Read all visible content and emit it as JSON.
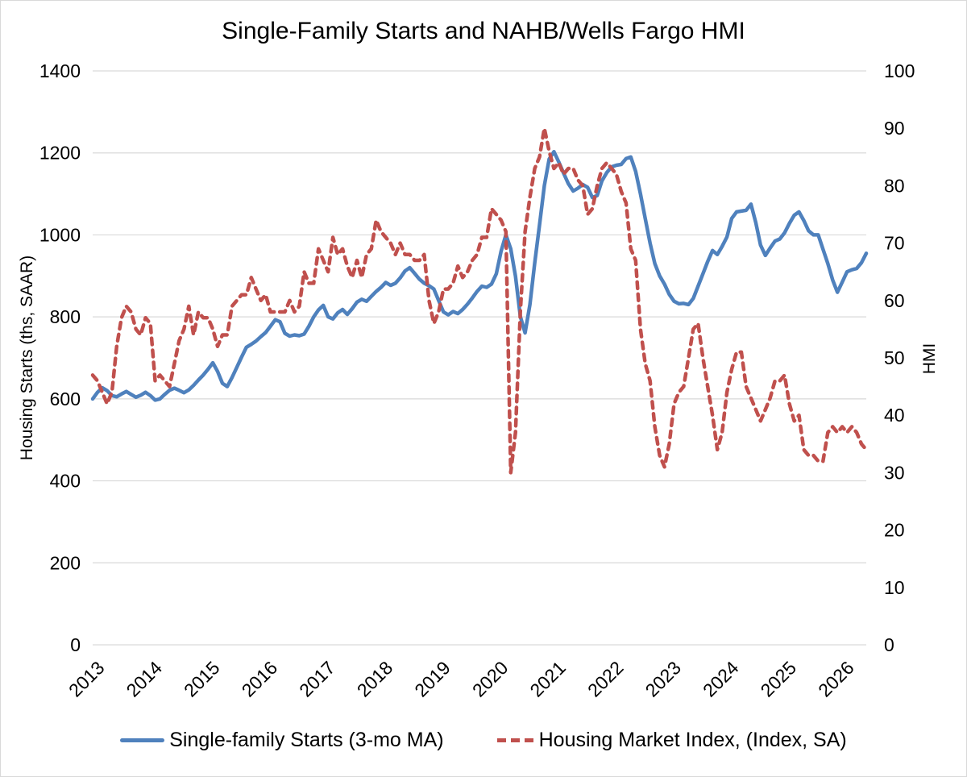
{
  "title": "Single-Family Starts and NAHB/Wells Fargo HMI",
  "colors": {
    "starts_blue": "#4F81BD",
    "hmi_red": "#C0504D",
    "gridline": "#D9D9D9",
    "text": "#000000"
  },
  "chart_data": {
    "type": "line",
    "title": "Single-Family Starts and NAHB/Wells Fargo HMI",
    "grid": "horizontal-only",
    "legend_position": "bottom",
    "x_start": "2013-01",
    "x_end": "2026-06",
    "x_frequency": "monthly",
    "x_tick_labels": [
      "2013",
      "2014",
      "2015",
      "2016",
      "2017",
      "2018",
      "2019",
      "2020",
      "2021",
      "2022",
      "2023",
      "2024",
      "2025",
      "2026"
    ],
    "left_axis": {
      "label": "Housing Starts (ths, SAAR)",
      "min": 0,
      "max": 1400,
      "step": 200,
      "ticks": [
        "0",
        "200",
        "400",
        "600",
        "800",
        "1000",
        "1200",
        "1400"
      ]
    },
    "right_axis": {
      "label": "HMI",
      "min": 0,
      "max": 100,
      "step": 10,
      "ticks": [
        "0",
        "10",
        "20",
        "30",
        "40",
        "50",
        "60",
        "70",
        "80",
        "90",
        "100"
      ]
    },
    "series": [
      {
        "name": "Single-family Starts (3-mo MA)",
        "axis": "left",
        "color": "#4F81BD",
        "style": "solid",
        "values": [
          600,
          616,
          627,
          620,
          608,
          605,
          612,
          618,
          611,
          604,
          609,
          616,
          608,
          597,
          600,
          611,
          621,
          626,
          621,
          615,
          622,
          633,
          646,
          658,
          672,
          688,
          667,
          638,
          630,
          652,
          677,
          702,
          726,
          733,
          741,
          752,
          762,
          777,
          793,
          788,
          760,
          753,
          756,
          754,
          758,
          777,
          800,
          817,
          828,
          800,
          795,
          810,
          818,
          806,
          820,
          836,
          843,
          838,
          850,
          862,
          872,
          884,
          877,
          882,
          895,
          912,
          920,
          906,
          892,
          882,
          876,
          868,
          840,
          812,
          805,
          813,
          808,
          818,
          831,
          846,
          862,
          875,
          872,
          880,
          905,
          960,
          1000,
          966,
          899,
          801,
          761,
          830,
          932,
          1024,
          1120,
          1185,
          1203,
          1178,
          1151,
          1125,
          1107,
          1114,
          1123,
          1116,
          1091,
          1096,
          1132,
          1152,
          1166,
          1170,
          1172,
          1186,
          1190,
          1155,
          1100,
          1040,
          980,
          930,
          900,
          880,
          855,
          838,
          832,
          833,
          830,
          845,
          875,
          905,
          935,
          962,
          952,
          972,
          995,
          1040,
          1056,
          1058,
          1060,
          1075,
          1030,
          975,
          950,
          968,
          985,
          990,
          1005,
          1028,
          1048,
          1056,
          1035,
          1010,
          1000,
          1000,
          965,
          930,
          890,
          860,
          885,
          910,
          915,
          918,
          932,
          955
        ]
      },
      {
        "name": "Housing Market Index, (Index, SA)",
        "axis": "right",
        "color": "#C0504D",
        "style": "dashed",
        "values": [
          47,
          46,
          44,
          42,
          44,
          52,
          57,
          59,
          58,
          55,
          54,
          57,
          56,
          46,
          47,
          46,
          45,
          49,
          53,
          55,
          59,
          54,
          58,
          57,
          57,
          55,
          52,
          54,
          54,
          59,
          60,
          61,
          61,
          64,
          62,
          60,
          61,
          58,
          58,
          58,
          58,
          60,
          58,
          59,
          65,
          63,
          63,
          69,
          67,
          65,
          71,
          68,
          69,
          66,
          64,
          67,
          64,
          68,
          69,
          74,
          72,
          71,
          70,
          68,
          70,
          68,
          68,
          67,
          67,
          68,
          60,
          56,
          58,
          62,
          62,
          63,
          66,
          64,
          65,
          67,
          68,
          71,
          71,
          76,
          75,
          74,
          72,
          30,
          37,
          58,
          72,
          78,
          83,
          85,
          90,
          86,
          83,
          84,
          82,
          83,
          83,
          81,
          80,
          75,
          76,
          80,
          83,
          84,
          83,
          82,
          79,
          77,
          69,
          67,
          55,
          49,
          46,
          38,
          33,
          31,
          35,
          42,
          44,
          45,
          50,
          55,
          56,
          50,
          45,
          40,
          34,
          37,
          44,
          48,
          51,
          51,
          45,
          43,
          41,
          39,
          41,
          43,
          46,
          46,
          47,
          42,
          39,
          40,
          34,
          33,
          33,
          32,
          32,
          37,
          38,
          37,
          38,
          37,
          38,
          37,
          35,
          34
        ]
      }
    ]
  }
}
